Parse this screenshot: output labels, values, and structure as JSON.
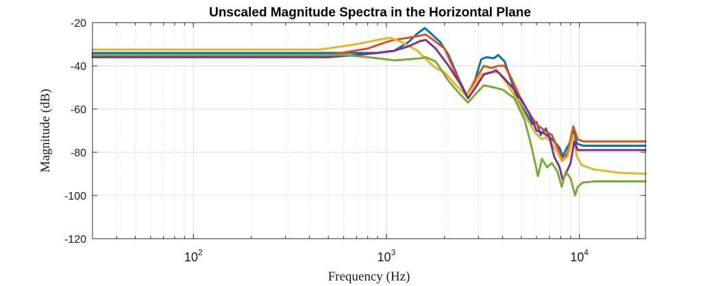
{
  "chart_data": {
    "type": "line",
    "title": "Unscaled Magnitude Spectra in the Horizontal Plane",
    "xlabel": "Frequency (Hz)",
    "ylabel": "Magnitude (dB)",
    "xscale": "log",
    "xlim": [
      30,
      22000
    ],
    "ylim": [
      -120,
      -20
    ],
    "yticks": [
      -20,
      -40,
      -60,
      -80,
      -100,
      -120
    ],
    "xticks": [
      {
        "value": 100,
        "base": "10",
        "exp": "2"
      },
      {
        "value": 1000,
        "base": "10",
        "exp": "3"
      },
      {
        "value": 10000,
        "base": "10",
        "exp": "4"
      }
    ],
    "grid": true,
    "legend": "none",
    "series": [
      {
        "color": "#0072BD",
        "points": [
          [
            30,
            -34
          ],
          [
            500,
            -34
          ],
          [
            900,
            -34
          ],
          [
            1100,
            -33
          ],
          [
            1300,
            -29
          ],
          [
            1450,
            -25
          ],
          [
            1580,
            -22.5
          ],
          [
            1700,
            -25
          ],
          [
            1900,
            -29
          ],
          [
            2100,
            -35
          ],
          [
            2400,
            -47
          ],
          [
            2600,
            -53.5
          ],
          [
            2800,
            -50
          ],
          [
            3100,
            -37
          ],
          [
            3300,
            -36
          ],
          [
            3600,
            -36.5
          ],
          [
            3800,
            -35
          ],
          [
            4100,
            -38
          ],
          [
            4400,
            -46
          ],
          [
            4800,
            -56
          ],
          [
            5300,
            -62
          ],
          [
            5700,
            -67
          ],
          [
            6000,
            -66
          ],
          [
            6300,
            -72
          ],
          [
            6700,
            -69
          ],
          [
            7000,
            -73
          ],
          [
            7400,
            -75
          ],
          [
            7900,
            -78
          ],
          [
            8200,
            -82
          ],
          [
            8600,
            -78
          ],
          [
            9000,
            -75
          ],
          [
            9300,
            -69
          ],
          [
            9700,
            -76
          ],
          [
            10500,
            -77
          ],
          [
            22000,
            -77
          ]
        ]
      },
      {
        "color": "#D95319",
        "points": [
          [
            30,
            -35
          ],
          [
            500,
            -35
          ],
          [
            800,
            -32
          ],
          [
            1000,
            -29
          ],
          [
            1100,
            -28
          ],
          [
            1300,
            -27
          ],
          [
            1500,
            -26
          ],
          [
            1600,
            -25.5
          ],
          [
            1750,
            -28
          ],
          [
            2000,
            -32
          ],
          [
            2300,
            -44
          ],
          [
            2600,
            -54
          ],
          [
            2900,
            -46
          ],
          [
            3200,
            -40
          ],
          [
            3500,
            -41
          ],
          [
            3800,
            -40
          ],
          [
            4100,
            -40
          ],
          [
            4400,
            -45
          ],
          [
            4900,
            -54
          ],
          [
            5500,
            -62
          ],
          [
            6000,
            -67
          ],
          [
            6600,
            -70
          ],
          [
            7200,
            -72
          ],
          [
            7800,
            -79
          ],
          [
            8200,
            -84
          ],
          [
            8700,
            -80
          ],
          [
            9300,
            -68
          ],
          [
            9800,
            -74
          ],
          [
            10500,
            -75
          ],
          [
            22000,
            -75
          ]
        ]
      },
      {
        "color": "#EDB120",
        "points": [
          [
            30,
            -32.5
          ],
          [
            450,
            -32.5
          ],
          [
            700,
            -30
          ],
          [
            900,
            -28
          ],
          [
            1050,
            -27
          ],
          [
            1200,
            -29
          ],
          [
            1450,
            -33
          ],
          [
            1650,
            -38
          ],
          [
            1800,
            -41
          ],
          [
            2000,
            -43
          ],
          [
            2300,
            -49
          ],
          [
            2600,
            -54
          ],
          [
            2850,
            -49
          ],
          [
            3100,
            -44
          ],
          [
            3400,
            -43
          ],
          [
            3800,
            -43
          ],
          [
            4200,
            -48
          ],
          [
            4700,
            -55
          ],
          [
            5300,
            -64
          ],
          [
            5900,
            -71
          ],
          [
            6400,
            -74
          ],
          [
            6700,
            -73
          ],
          [
            7100,
            -75
          ],
          [
            7700,
            -80
          ],
          [
            8100,
            -84
          ],
          [
            8700,
            -82
          ],
          [
            9300,
            -72
          ],
          [
            9700,
            -82
          ],
          [
            10300,
            -86
          ],
          [
            12000,
            -88
          ],
          [
            16000,
            -89.5
          ],
          [
            22000,
            -90
          ]
        ]
      },
      {
        "color": "#7E2F8E",
        "points": [
          [
            30,
            -36
          ],
          [
            500,
            -36
          ],
          [
            700,
            -35
          ],
          [
            900,
            -34
          ],
          [
            1100,
            -33
          ],
          [
            1300,
            -31
          ],
          [
            1500,
            -28.5
          ],
          [
            1600,
            -28
          ],
          [
            1800,
            -32
          ],
          [
            2100,
            -40
          ],
          [
            2400,
            -48
          ],
          [
            2650,
            -55
          ],
          [
            2900,
            -50
          ],
          [
            3200,
            -44
          ],
          [
            3500,
            -43
          ],
          [
            3700,
            -42
          ],
          [
            4000,
            -45
          ],
          [
            4500,
            -50
          ],
          [
            5000,
            -56
          ],
          [
            5500,
            -62
          ],
          [
            6000,
            -70
          ],
          [
            6500,
            -71
          ],
          [
            7000,
            -73
          ],
          [
            7400,
            -82
          ],
          [
            7900,
            -87
          ],
          [
            8200,
            -93
          ],
          [
            8500,
            -90
          ],
          [
            9000,
            -85
          ],
          [
            9400,
            -75
          ],
          [
            9800,
            -79
          ],
          [
            22000,
            -79
          ]
        ]
      },
      {
        "color": "#77AC30",
        "points": [
          [
            30,
            -35
          ],
          [
            600,
            -35
          ],
          [
            800,
            -36
          ],
          [
            1000,
            -37
          ],
          [
            1100,
            -37.5
          ],
          [
            1300,
            -37
          ],
          [
            1500,
            -36.5
          ],
          [
            1600,
            -36
          ],
          [
            1800,
            -38
          ],
          [
            2100,
            -47
          ],
          [
            2400,
            -53
          ],
          [
            2650,
            -57
          ],
          [
            2900,
            -53
          ],
          [
            3200,
            -49
          ],
          [
            3600,
            -50
          ],
          [
            4000,
            -51
          ],
          [
            4600,
            -55
          ],
          [
            5200,
            -65
          ],
          [
            5600,
            -76
          ],
          [
            5900,
            -85
          ],
          [
            6100,
            -91
          ],
          [
            6400,
            -83
          ],
          [
            6800,
            -87
          ],
          [
            7200,
            -85
          ],
          [
            7700,
            -89
          ],
          [
            8100,
            -96
          ],
          [
            8500,
            -89
          ],
          [
            9000,
            -92
          ],
          [
            9500,
            -100
          ],
          [
            9800,
            -96
          ],
          [
            10400,
            -94
          ],
          [
            12000,
            -93.5
          ],
          [
            22000,
            -93.5
          ]
        ]
      }
    ]
  }
}
